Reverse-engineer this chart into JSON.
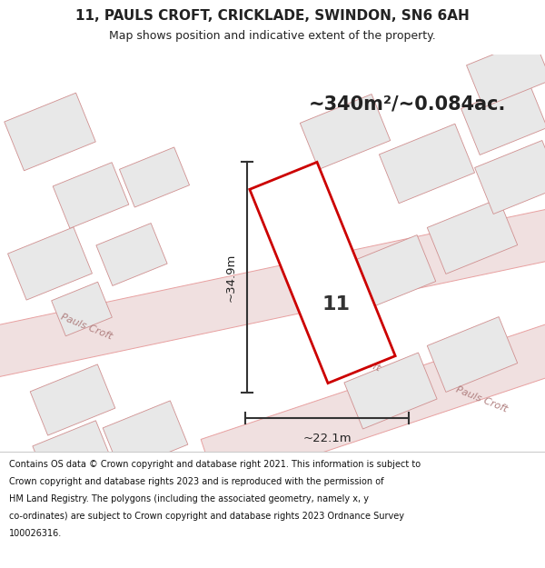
{
  "title": "11, PAULS CROFT, CRICKLADE, SWINDON, SN6 6AH",
  "subtitle": "Map shows position and indicative extent of the property.",
  "area_text": "~340m²/~0.084ac.",
  "dim_vertical": "~34.9m",
  "dim_horizontal": "~22.1m",
  "label_number": "11",
  "footer_text_line1": "Contains OS data © Crown copyright and database right 2021. This information is subject to",
  "footer_text_line2": "Crown copyright and database rights 2023 and is reproduced with the permission of",
  "footer_text_line3": "HM Land Registry. The polygons (including the associated geometry, namely x, y",
  "footer_text_line4": "co-ordinates) are subject to Crown copyright and database rights 2023 Ordnance Survey",
  "footer_text_line5": "100026316.",
  "bg_color": "#ffffff",
  "map_bg_color": "#ffffff",
  "road_outline_color": "#e8a0a0",
  "road_fill_color": "#f0e0e0",
  "building_fill": "#e8e8e8",
  "building_edge": "#d09090",
  "highlight_color": "#cc0000",
  "road_label_color": "#b08080",
  "title_color": "#222222",
  "footer_color": "#111111",
  "dim_line_color": "#333333",
  "footer_sep_color": "#cccccc"
}
